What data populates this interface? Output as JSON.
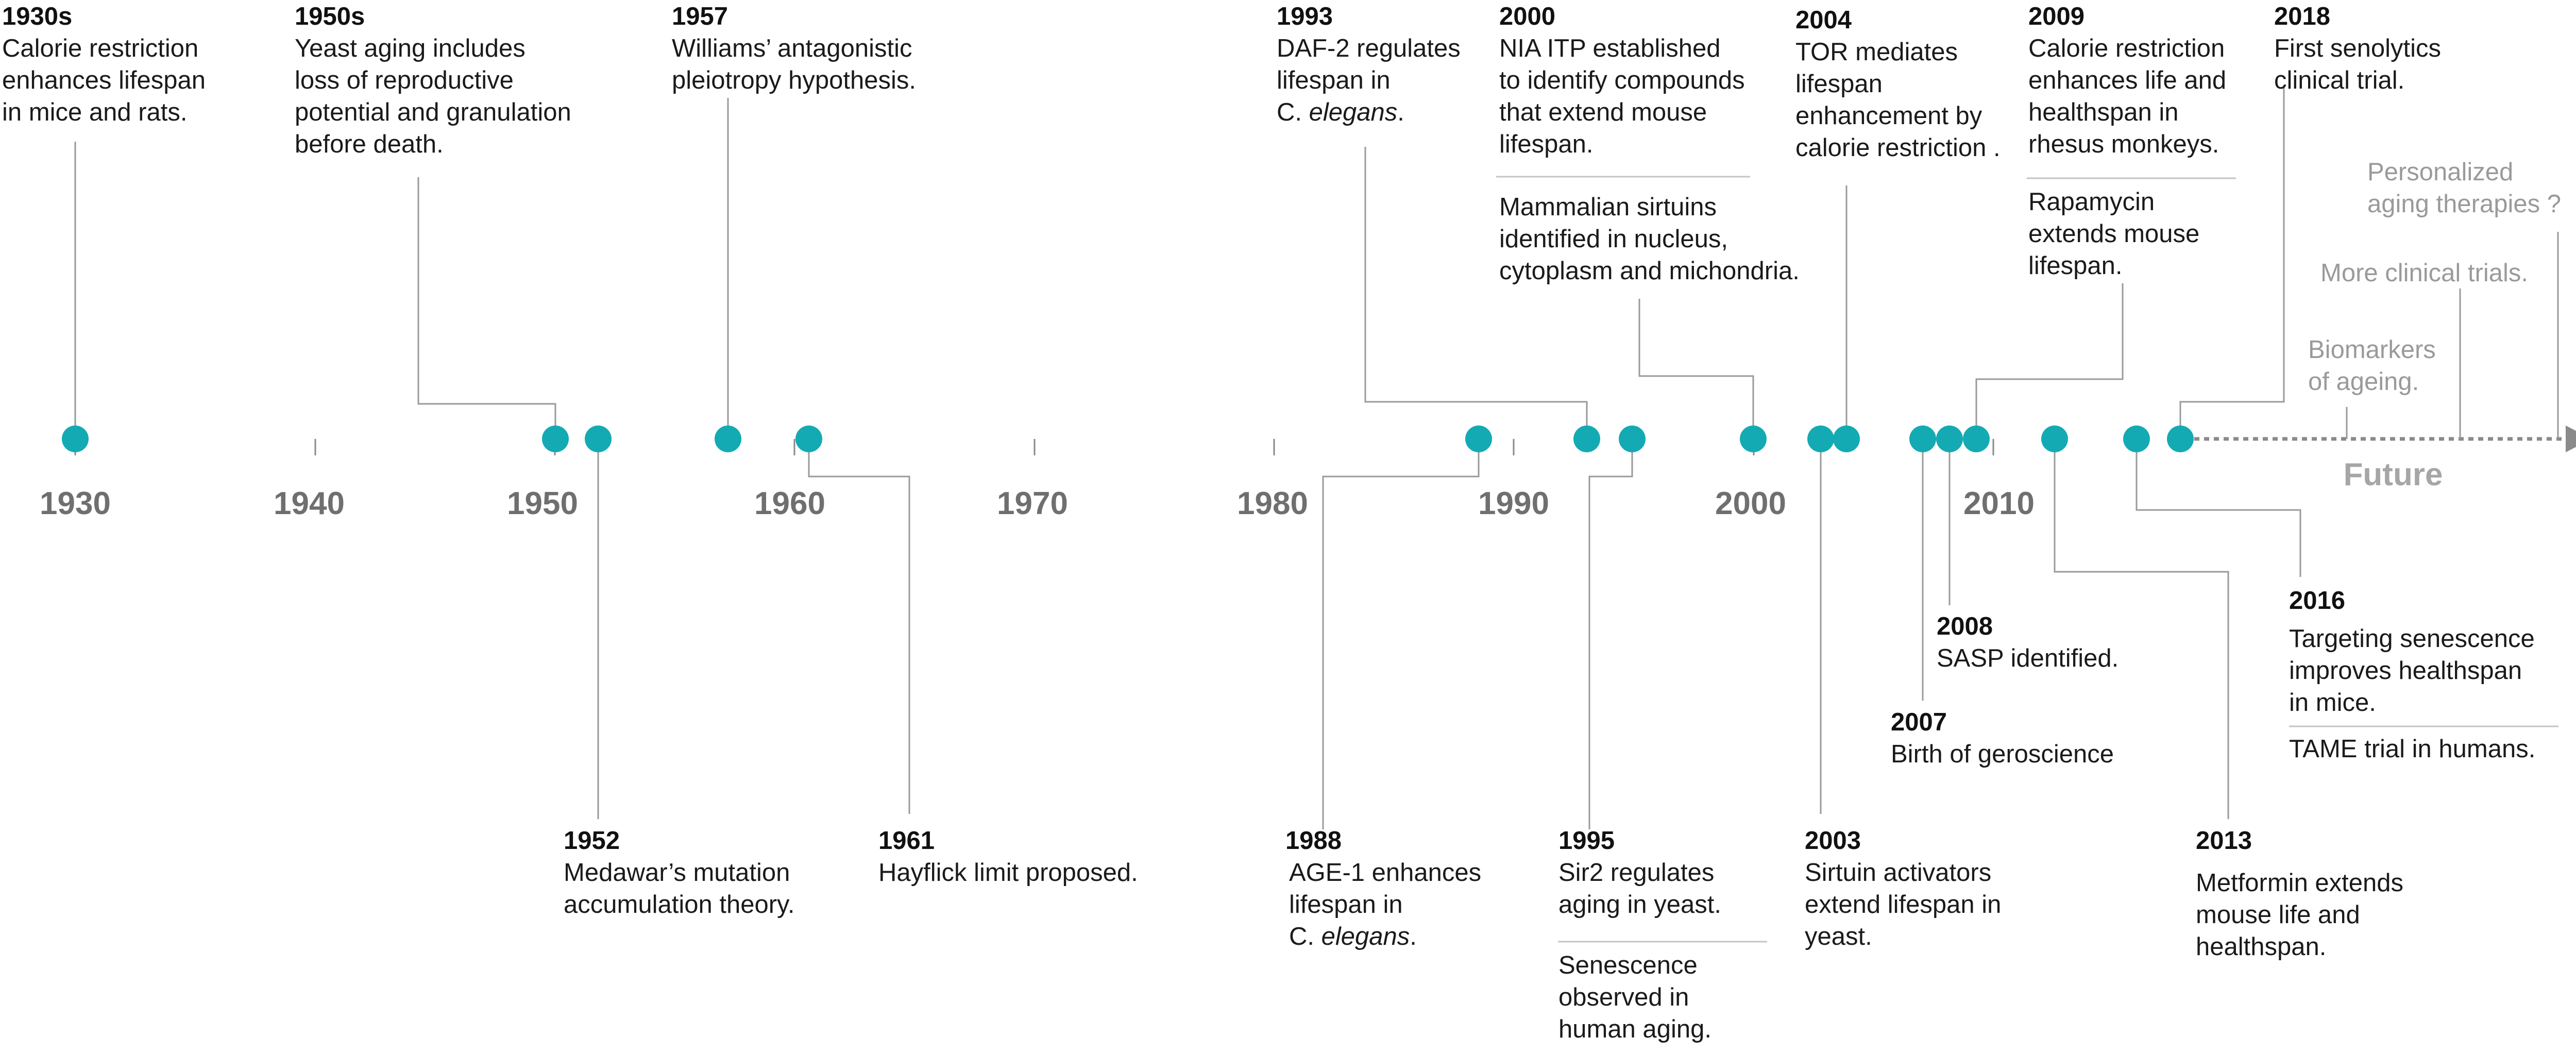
{
  "axis": {
    "years": [
      "1930",
      "1940",
      "1950",
      "1960",
      "1970",
      "1980",
      "1990",
      "2000",
      "2010"
    ],
    "future_label": "Future"
  },
  "colors": {
    "dot": "#14aab4",
    "axis": "#8a8a8a",
    "future_text": "#9a9a9a"
  },
  "events": {
    "e1930s": {
      "year": "1930s",
      "text": [
        "Calorie restriction",
        "enhances lifespan",
        "in mice and rats."
      ]
    },
    "e1950s": {
      "year": "1950s",
      "text": [
        "Yeast aging includes",
        "loss of reproductive",
        "potential and granulation",
        "before death."
      ]
    },
    "e1957": {
      "year": "1957",
      "text": [
        "Williams’ antagonistic",
        "pleiotropy hypothesis."
      ]
    },
    "e1993": {
      "year": "1993",
      "text": [
        "DAF-2 regulates",
        "lifespan in"
      ],
      "species": {
        "prefix": "C. ",
        "genus": "elegans",
        "suffix": "."
      }
    },
    "e2000": {
      "year": "2000",
      "text": [
        "NIA ITP established",
        "to identify compounds",
        "that extend mouse",
        "lifespan."
      ]
    },
    "e2000b": {
      "text": [
        "Mammalian sirtuins",
        "identified in nucleus,",
        "cytoplasm and michondria."
      ]
    },
    "e2004": {
      "year": "2004",
      "text": [
        "TOR mediates",
        "lifespan",
        "enhancement by",
        "calorie restriction ."
      ]
    },
    "e2009": {
      "year": "2009",
      "text": [
        "Calorie restriction",
        "enhances life and",
        "healthspan in",
        "rhesus monkeys."
      ]
    },
    "e2009b": {
      "text": [
        "Rapamycin",
        "extends mouse",
        "lifespan."
      ]
    },
    "e2018": {
      "year": "2018",
      "text": [
        "First senolytics",
        "clinical trial."
      ]
    },
    "e1952": {
      "year": "1952",
      "text": [
        "Medawar’s mutation",
        "accumulation theory."
      ]
    },
    "e1961": {
      "year": "1961",
      "text": [
        "Hayflick limit proposed."
      ]
    },
    "e1988": {
      "year": "1988",
      "text": [
        "AGE-1 enhances",
        "lifespan in"
      ],
      "species": {
        "prefix": "C. ",
        "genus": "elegans",
        "suffix": "."
      }
    },
    "e1995": {
      "year": "1995",
      "text": [
        "Sir2 regulates",
        "aging in yeast."
      ]
    },
    "e1995b": {
      "text": [
        "Senescence",
        "observed in",
        "human aging."
      ]
    },
    "e2003": {
      "year": "2003",
      "text": [
        "Sirtuin activators",
        "extend lifespan in",
        "yeast."
      ]
    },
    "e2007": {
      "year": "2007",
      "text": [
        "Birth of geroscience"
      ]
    },
    "e2008": {
      "year": "2008",
      "text": [
        "SASP identified."
      ]
    },
    "e2013": {
      "year": "2013",
      "text": [
        "Metformin extends",
        "mouse life and",
        "healthspan."
      ]
    },
    "e2016": {
      "year": "2016",
      "text": [
        "Targeting senescence",
        "improves healthspan",
        "in mice."
      ]
    },
    "e2016b": {
      "text": [
        "TAME trial in humans."
      ]
    }
  },
  "future": {
    "personalized": [
      "Personalized",
      "aging therapies ?"
    ],
    "trials": "More clinical trials.",
    "biomarkers": [
      "Biomarkers",
      "of ageing."
    ]
  }
}
